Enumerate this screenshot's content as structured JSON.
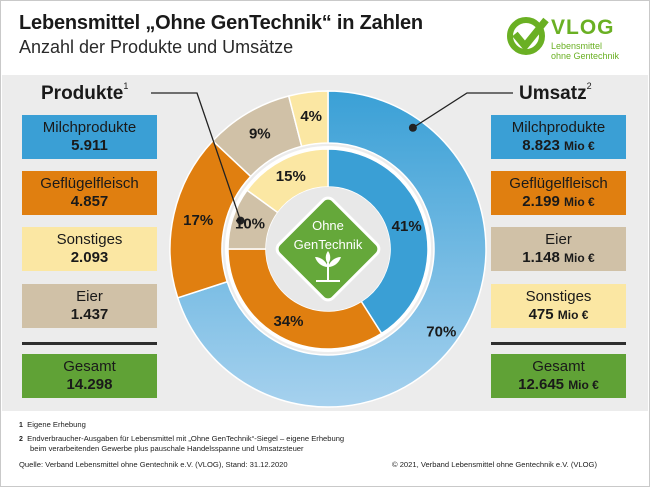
{
  "header": {
    "title": "Lebensmittel „Ohne GenTechnik“ in Zahlen",
    "subtitle": "Anzahl der Produkte und Umsätze"
  },
  "logo": {
    "name": "VLOG",
    "sub_1": "Lebensmittel",
    "sub_2": "ohne Gentechnik"
  },
  "left": {
    "heading": "Produkte",
    "mark": "1",
    "items": [
      {
        "label": "Milchprodukte",
        "value": "5.911"
      },
      {
        "label": "Geflügelfleisch",
        "value": "4.857"
      },
      {
        "label": "Sonstiges",
        "value": "2.093"
      },
      {
        "label": "Eier",
        "value": "1.437"
      }
    ],
    "total": {
      "label": "Gesamt",
      "value": "14.298"
    }
  },
  "right": {
    "heading": "Umsatz",
    "mark": "2",
    "unit": "Mio €",
    "items": [
      {
        "label": "Milchprodukte",
        "value": "8.823"
      },
      {
        "label": "Geflügelfleisch",
        "value": "2.199"
      },
      {
        "label": "Eier",
        "value": "1.148"
      },
      {
        "label": "Sonstiges",
        "value": "475"
      }
    ],
    "total": {
      "label": "Gesamt",
      "value": "12.645"
    }
  },
  "badge": {
    "line_1": "Ohne",
    "line_2": "GenTechnik"
  },
  "colors": {
    "milk": "#3a9fd5",
    "poultry": "#e07f10",
    "other": "#fbe7a3",
    "eggs": "#d0c1a7",
    "total": "#60a236",
    "brand_green": "#6ab023"
  },
  "chart_data": {
    "type": "pie",
    "rings": [
      {
        "ring": "outer",
        "measure": "Umsatz",
        "slices": [
          {
            "category": "Milchprodukte",
            "value": 70,
            "label": "70%",
            "color": "#3a9fd5"
          },
          {
            "category": "Geflügelfleisch",
            "value": 17,
            "label": "17%",
            "color": "#e07f10"
          },
          {
            "category": "Eier",
            "value": 9,
            "label": "9%",
            "color": "#d0c1a7"
          },
          {
            "category": "Sonstiges",
            "value": 4,
            "label": "4%",
            "color": "#fbe7a3"
          }
        ]
      },
      {
        "ring": "inner",
        "measure": "Produkte",
        "slices": [
          {
            "category": "Milchprodukte",
            "value": 41,
            "label": "41%",
            "color": "#3a9fd5"
          },
          {
            "category": "Geflügelfleisch",
            "value": 34,
            "label": "34%",
            "color": "#e07f10"
          },
          {
            "category": "Eier",
            "value": 10,
            "label": "10%",
            "color": "#d0c1a7"
          },
          {
            "category": "Sonstiges",
            "value": 15,
            "label": "15%",
            "color": "#fbe7a3"
          }
        ]
      }
    ]
  },
  "footer": {
    "note_1_mark": "1",
    "note_1": "Eigene Erhebung",
    "note_2_mark": "2",
    "note_2a": "Endverbraucher-Ausgaben für Lebensmittel mit „Ohne GenTechnik“-Siegel – eigene Erhebung",
    "note_2b": "beim verarbeitenden Gewerbe plus pauschale Handelsspanne und Umsatzsteuer",
    "source": "Quelle: Verband Lebensmittel ohne Gentechnik e.V. (VLOG), Stand: 31.12.2020",
    "copyright": "© 2021, Verband Lebensmittel ohne Gentechnik e.V. (VLOG)"
  }
}
